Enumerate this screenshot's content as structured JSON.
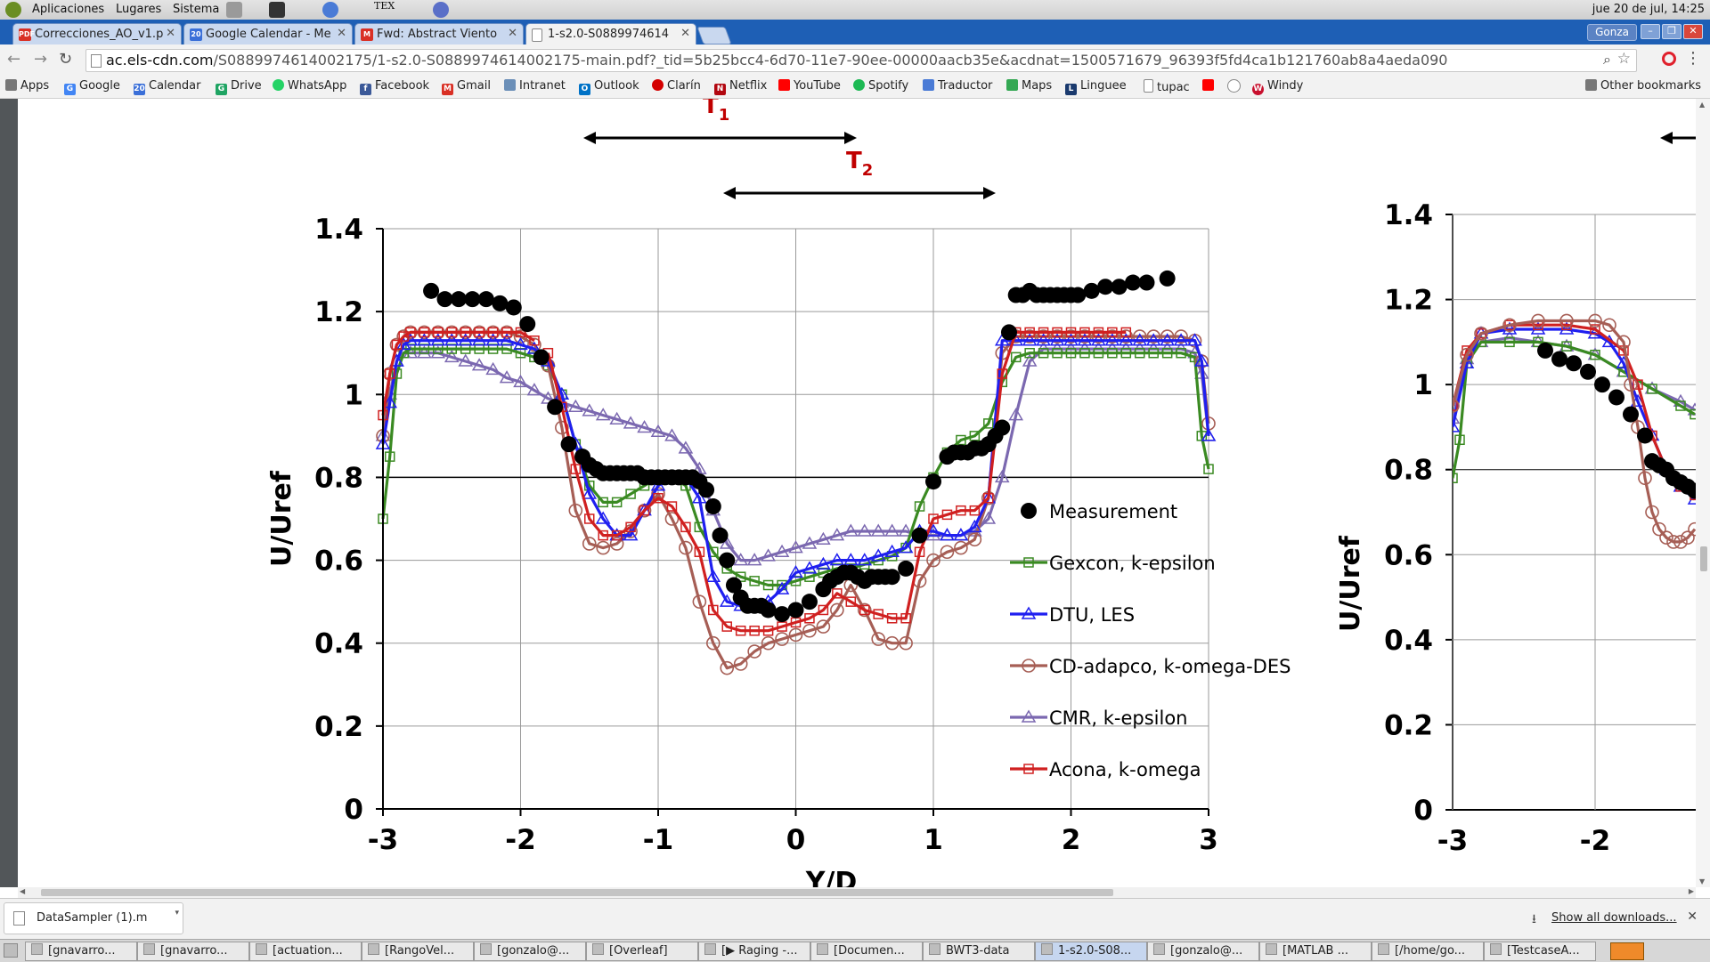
{
  "system_bar": {
    "menus": [
      "Aplicaciones",
      "Lugares",
      "Sistema"
    ],
    "tex_icon_text": "TEX",
    "clock": "jue 20 de jul, 14:25"
  },
  "tabs": [
    {
      "title": "Correcciones_AO_v1.p",
      "favicon": "pdf-icon",
      "favicon_text": "PDF"
    },
    {
      "title": "Google Calendar - Me",
      "favicon": "calendar-icon",
      "favicon_text": "20"
    },
    {
      "title": "Fwd: Abstract Viento",
      "favicon": "gmail-icon",
      "favicon_text": "M"
    },
    {
      "title": "1-s2.0-S0889974614",
      "favicon": "page-icon",
      "favicon_text": ""
    }
  ],
  "window": {
    "user_button": "Gonza"
  },
  "address_bar": {
    "host": "ac.els-cdn.com",
    "path": "/S0889974614002175/1-s2.0-S0889974614002175-main.pdf?_tid=5b25bcc4-6d70-11e7-90ee-00000aacb35e&acdnat=1500571679_96393f5fd4ca1b121760ab8a4aeda090"
  },
  "bookmarks": [
    {
      "label": "Apps",
      "color": "#777777",
      "glyph": ""
    },
    {
      "label": "Google",
      "color": "#4285f4",
      "glyph": "G"
    },
    {
      "label": "Calendar",
      "color": "#3a6fd8",
      "glyph": "20"
    },
    {
      "label": "Drive",
      "color": "#1fa463",
      "glyph": "G"
    },
    {
      "label": "WhatsApp",
      "color": "#25d366",
      "glyph": ""
    },
    {
      "label": "Facebook",
      "color": "#3b5998",
      "glyph": "f"
    },
    {
      "label": "Gmail",
      "color": "#d93025",
      "glyph": "M"
    },
    {
      "label": "Intranet",
      "color": "#6b8fb8",
      "glyph": ""
    },
    {
      "label": "Outlook",
      "color": "#0072c6",
      "glyph": "O"
    },
    {
      "label": "Clarín",
      "color": "#d40000",
      "glyph": ""
    },
    {
      "label": "Netflix",
      "color": "#b20710",
      "glyph": "N"
    },
    {
      "label": "YouTube",
      "color": "#ff0000",
      "glyph": ""
    },
    {
      "label": "Spotify",
      "color": "#1db954",
      "glyph": ""
    },
    {
      "label": "Traductor",
      "color": "#4a7bd6",
      "glyph": ""
    },
    {
      "label": "Maps",
      "color": "#34a853",
      "glyph": ""
    },
    {
      "label": "Linguee",
      "color": "#1a3a6e",
      "glyph": "L"
    },
    {
      "label": "tupac",
      "color": "#aaaaaa",
      "glyph": ""
    },
    {
      "label": "",
      "color": "#ff0000",
      "glyph": ""
    },
    {
      "label": "",
      "color": "#888888",
      "glyph": ""
    },
    {
      "label": "Windy",
      "color": "#c8102e",
      "glyph": "W"
    }
  ],
  "other_bookmarks": "Other bookmarks",
  "figure": {
    "annotations": {
      "t1": {
        "label": "T",
        "sub": "1"
      },
      "t2": {
        "label": "T",
        "sub": "2"
      },
      "label_color": "#c00000"
    },
    "right_partial_ylabel": "U/Uref",
    "right_partial_yticks": [
      "0",
      "0.2",
      "0.4",
      "0.6",
      "0.8",
      "1",
      "1.2",
      "1.4"
    ],
    "right_partial_xticks": [
      "-3",
      "-2"
    ],
    "cut_xlabel": "Y/D"
  },
  "chart_data": {
    "type": "line",
    "title": "",
    "xlabel": "Y/D",
    "ylabel": "U/Uref",
    "xlim": [
      -3,
      3
    ],
    "ylim": [
      0,
      1.4
    ],
    "xticks": [
      "-3",
      "-2",
      "-1",
      "0",
      "1",
      "2",
      "3"
    ],
    "yticks": [
      "0",
      "0.2",
      "0.4",
      "0.6",
      "0.8",
      "1",
      "1.2",
      "1.4"
    ],
    "grid": true,
    "legend_position": "right",
    "series": [
      {
        "name": "Measurement",
        "color": "#000000",
        "marker": "filled-circle",
        "x": [
          -2.65,
          -2.55,
          -2.45,
          -2.35,
          -2.25,
          -2.15,
          -2.05,
          -1.95,
          -1.85,
          -1.75,
          -1.65,
          -1.55,
          -1.5,
          -1.45,
          -1.4,
          -1.35,
          -1.3,
          -1.25,
          -1.2,
          -1.15,
          -1.1,
          -1.05,
          -1.0,
          -0.95,
          -0.9,
          -0.85,
          -0.8,
          -0.75,
          -0.7,
          -0.65,
          -0.6,
          -0.55,
          -0.5,
          -0.45,
          -0.4,
          -0.35,
          -0.3,
          -0.25,
          -0.2,
          -0.1,
          0.0,
          0.1,
          0.2,
          0.25,
          0.3,
          0.35,
          0.4,
          0.45,
          0.5,
          0.55,
          0.6,
          0.65,
          0.7,
          0.8,
          0.9,
          1.0,
          1.1,
          1.15,
          1.2,
          1.25,
          1.3,
          1.35,
          1.4,
          1.45,
          1.5,
          1.55,
          1.6,
          1.65,
          1.7,
          1.75,
          1.8,
          1.85,
          1.9,
          1.95,
          2.0,
          2.05,
          2.15,
          2.25,
          2.35,
          2.45,
          2.55,
          2.7
        ],
        "y": [
          1.25,
          1.23,
          1.23,
          1.23,
          1.23,
          1.22,
          1.21,
          1.17,
          1.09,
          0.97,
          0.88,
          0.85,
          0.83,
          0.82,
          0.81,
          0.81,
          0.81,
          0.81,
          0.81,
          0.81,
          0.8,
          0.8,
          0.8,
          0.8,
          0.8,
          0.8,
          0.8,
          0.8,
          0.79,
          0.77,
          0.73,
          0.66,
          0.6,
          0.54,
          0.51,
          0.49,
          0.49,
          0.49,
          0.48,
          0.47,
          0.48,
          0.5,
          0.53,
          0.55,
          0.56,
          0.57,
          0.57,
          0.56,
          0.55,
          0.56,
          0.56,
          0.56,
          0.56,
          0.58,
          0.66,
          0.79,
          0.85,
          0.86,
          0.86,
          0.86,
          0.87,
          0.87,
          0.88,
          0.9,
          0.92,
          1.15,
          1.24,
          1.24,
          1.25,
          1.24,
          1.24,
          1.24,
          1.24,
          1.24,
          1.24,
          1.24,
          1.25,
          1.26,
          1.26,
          1.27,
          1.27,
          1.28
        ]
      },
      {
        "name": "Gexcon, k-epsilon",
        "color": "#3a8a22",
        "marker": "square",
        "x": [
          -3.0,
          -2.95,
          -2.9,
          -2.85,
          -2.8,
          -2.7,
          -2.6,
          -2.5,
          -2.4,
          -2.3,
          -2.2,
          -2.1,
          -2.0,
          -1.9,
          -1.8,
          -1.7,
          -1.6,
          -1.5,
          -1.4,
          -1.3,
          -1.2,
          -1.1,
          -1.0,
          -0.9,
          -0.8,
          -0.7,
          -0.6,
          -0.5,
          -0.4,
          -0.3,
          -0.2,
          -0.1,
          0.0,
          0.1,
          0.2,
          0.3,
          0.4,
          0.5,
          0.6,
          0.7,
          0.8,
          0.9,
          1.0,
          1.1,
          1.2,
          1.3,
          1.4,
          1.5,
          1.6,
          1.7,
          1.8,
          1.9,
          2.0,
          2.1,
          2.2,
          2.3,
          2.4,
          2.5,
          2.6,
          2.7,
          2.8,
          2.9,
          2.95,
          3.0
        ],
        "y": [
          0.7,
          0.85,
          1.05,
          1.1,
          1.11,
          1.11,
          1.11,
          1.11,
          1.11,
          1.11,
          1.11,
          1.11,
          1.1,
          1.09,
          1.07,
          1.0,
          0.88,
          0.78,
          0.74,
          0.74,
          0.76,
          0.78,
          0.8,
          0.8,
          0.78,
          0.68,
          0.62,
          0.58,
          0.56,
          0.55,
          0.54,
          0.54,
          0.55,
          0.56,
          0.57,
          0.58,
          0.58,
          0.59,
          0.6,
          0.61,
          0.63,
          0.73,
          0.8,
          0.86,
          0.89,
          0.9,
          0.93,
          1.03,
          1.09,
          1.1,
          1.1,
          1.1,
          1.1,
          1.1,
          1.1,
          1.1,
          1.1,
          1.1,
          1.1,
          1.1,
          1.1,
          1.09,
          0.9,
          0.82
        ]
      },
      {
        "name": "DTU, LES",
        "color": "#1f1ff0",
        "marker": "triangle",
        "x": [
          -3.0,
          -2.95,
          -2.9,
          -2.85,
          -2.8,
          -2.7,
          -2.6,
          -2.5,
          -2.4,
          -2.3,
          -2.2,
          -2.1,
          -2.0,
          -1.9,
          -1.8,
          -1.7,
          -1.6,
          -1.5,
          -1.4,
          -1.3,
          -1.2,
          -1.1,
          -1.0,
          -0.9,
          -0.8,
          -0.7,
          -0.6,
          -0.5,
          -0.4,
          -0.3,
          -0.2,
          -0.1,
          0.0,
          0.1,
          0.2,
          0.3,
          0.4,
          0.5,
          0.6,
          0.7,
          0.8,
          0.9,
          1.0,
          1.1,
          1.2,
          1.3,
          1.4,
          1.5,
          1.6,
          1.7,
          1.8,
          1.9,
          2.0,
          2.1,
          2.2,
          2.3,
          2.4,
          2.5,
          2.6,
          2.7,
          2.8,
          2.9,
          2.95,
          3.0
        ],
        "y": [
          0.88,
          0.98,
          1.08,
          1.12,
          1.13,
          1.13,
          1.13,
          1.13,
          1.13,
          1.13,
          1.13,
          1.13,
          1.12,
          1.11,
          1.08,
          1.0,
          0.88,
          0.76,
          0.7,
          0.66,
          0.66,
          0.72,
          0.78,
          0.8,
          0.8,
          0.75,
          0.56,
          0.5,
          0.49,
          0.49,
          0.5,
          0.53,
          0.57,
          0.58,
          0.59,
          0.6,
          0.6,
          0.6,
          0.61,
          0.62,
          0.63,
          0.67,
          0.67,
          0.66,
          0.66,
          0.68,
          0.75,
          1.13,
          1.13,
          1.13,
          1.13,
          1.13,
          1.13,
          1.13,
          1.13,
          1.13,
          1.13,
          1.13,
          1.13,
          1.13,
          1.13,
          1.13,
          1.08,
          0.9
        ]
      },
      {
        "name": "CD-adapco, k-omega-DES",
        "color": "#a65e55",
        "marker": "circle",
        "x": [
          -3.0,
          -2.95,
          -2.9,
          -2.85,
          -2.8,
          -2.7,
          -2.6,
          -2.5,
          -2.4,
          -2.3,
          -2.2,
          -2.1,
          -2.0,
          -1.9,
          -1.8,
          -1.7,
          -1.6,
          -1.5,
          -1.4,
          -1.3,
          -1.2,
          -1.1,
          -1.0,
          -0.9,
          -0.8,
          -0.7,
          -0.6,
          -0.5,
          -0.4,
          -0.3,
          -0.2,
          -0.1,
          0.0,
          0.1,
          0.2,
          0.3,
          0.4,
          0.5,
          0.6,
          0.7,
          0.8,
          0.9,
          1.0,
          1.1,
          1.2,
          1.3,
          1.4,
          1.5,
          1.6,
          1.7,
          1.8,
          1.9,
          2.0,
          2.1,
          2.2,
          2.3,
          2.4,
          2.5,
          2.6,
          2.7,
          2.8,
          2.9,
          2.95,
          3.0
        ],
        "y": [
          0.9,
          1.05,
          1.12,
          1.14,
          1.15,
          1.15,
          1.15,
          1.15,
          1.15,
          1.15,
          1.15,
          1.15,
          1.14,
          1.12,
          1.07,
          0.92,
          0.72,
          0.64,
          0.63,
          0.64,
          0.67,
          0.72,
          0.76,
          0.7,
          0.63,
          0.5,
          0.4,
          0.34,
          0.35,
          0.38,
          0.4,
          0.41,
          0.42,
          0.43,
          0.44,
          0.48,
          0.54,
          0.48,
          0.41,
          0.4,
          0.4,
          0.55,
          0.6,
          0.62,
          0.63,
          0.65,
          0.75,
          1.1,
          1.14,
          1.14,
          1.14,
          1.14,
          1.14,
          1.14,
          1.14,
          1.14,
          1.14,
          1.14,
          1.14,
          1.14,
          1.14,
          1.13,
          1.08,
          0.93
        ]
      },
      {
        "name": "CMR, k-epsilon",
        "color": "#7b68b0",
        "marker": "triangle",
        "x": [
          -3.0,
          -2.95,
          -2.9,
          -2.85,
          -2.8,
          -2.7,
          -2.6,
          -2.5,
          -2.4,
          -2.3,
          -2.2,
          -2.1,
          -2.0,
          -1.9,
          -1.8,
          -1.7,
          -1.6,
          -1.5,
          -1.4,
          -1.3,
          -1.2,
          -1.1,
          -1.0,
          -0.9,
          -0.8,
          -0.7,
          -0.6,
          -0.5,
          -0.4,
          -0.3,
          -0.2,
          -0.1,
          0.0,
          0.1,
          0.2,
          0.3,
          0.4,
          0.5,
          0.6,
          0.7,
          0.8,
          0.9,
          1.0,
          1.1,
          1.2,
          1.3,
          1.4,
          1.5,
          1.6,
          1.7,
          1.8,
          1.9,
          2.0,
          2.1,
          2.2,
          2.3,
          2.4,
          2.5,
          2.6,
          2.7,
          2.8,
          2.9,
          2.95,
          3.0
        ],
        "y": [
          0.9,
          1.0,
          1.08,
          1.1,
          1.1,
          1.1,
          1.1,
          1.09,
          1.08,
          1.07,
          1.06,
          1.04,
          1.03,
          1.01,
          0.99,
          0.98,
          0.97,
          0.96,
          0.95,
          0.94,
          0.93,
          0.92,
          0.91,
          0.9,
          0.87,
          0.82,
          0.72,
          0.64,
          0.6,
          0.6,
          0.61,
          0.62,
          0.63,
          0.64,
          0.65,
          0.66,
          0.67,
          0.67,
          0.67,
          0.67,
          0.67,
          0.66,
          0.66,
          0.66,
          0.66,
          0.67,
          0.7,
          0.8,
          0.95,
          1.08,
          1.11,
          1.11,
          1.11,
          1.11,
          1.11,
          1.11,
          1.11,
          1.11,
          1.11,
          1.11,
          1.11,
          1.1,
          1.05,
          0.9
        ]
      },
      {
        "name": "Acona, k-omega",
        "color": "#d02020",
        "marker": "square",
        "x": [
          -1.8,
          -1.7,
          -1.6,
          -1.5,
          -1.4,
          -1.3,
          -1.2,
          -1.1,
          -1.0,
          -0.9,
          -0.8,
          -0.7,
          -0.6,
          -0.5,
          -0.4,
          -0.3,
          -0.2,
          -0.1,
          0.0,
          0.1,
          0.2,
          0.3,
          0.4,
          0.5,
          0.6,
          0.7,
          0.8,
          0.9,
          1.0,
          1.1,
          1.2,
          1.3,
          1.4,
          1.5,
          1.6,
          1.7,
          1.8,
          1.9,
          2.0,
          2.1,
          2.2,
          2.3,
          2.4
        ],
        "y": [
          1.1,
          0.97,
          0.82,
          0.7,
          0.66,
          0.66,
          0.68,
          0.72,
          0.75,
          0.73,
          0.68,
          0.62,
          0.48,
          0.44,
          0.43,
          0.43,
          0.43,
          0.44,
          0.45,
          0.46,
          0.48,
          0.52,
          0.5,
          0.48,
          0.47,
          0.46,
          0.46,
          0.62,
          0.7,
          0.71,
          0.72,
          0.72,
          0.75,
          1.05,
          1.15,
          1.15,
          1.15,
          1.15,
          1.15,
          1.15,
          1.15,
          1.15,
          1.15
        ],
        "x_left": [
          -3.0,
          -2.95,
          -2.9,
          -2.85,
          -2.8,
          -2.7,
          -2.6,
          -2.5,
          -2.4,
          -2.3,
          -2.2,
          -2.1,
          -2.0,
          -1.9
        ],
        "y_left": [
          0.95,
          1.05,
          1.12,
          1.14,
          1.15,
          1.15,
          1.15,
          1.15,
          1.15,
          1.15,
          1.15,
          1.15,
          1.15,
          1.13
        ]
      }
    ]
  },
  "downloads": {
    "file": "DataSampler (1).m",
    "show_all": "Show all downloads..."
  },
  "taskbar": [
    "[gnavarro...",
    "[gnavarro...",
    "[actuation...",
    "[RangoVel...",
    "[gonzalo@...",
    "[Overleaf]",
    "[▶ Raging -...",
    "[Documen...",
    "BWT3-data",
    "1-s2.0-S08...",
    "[gonzalo@...",
    "[MATLAB ...",
    "[/home/go...",
    "[TestcaseA..."
  ]
}
